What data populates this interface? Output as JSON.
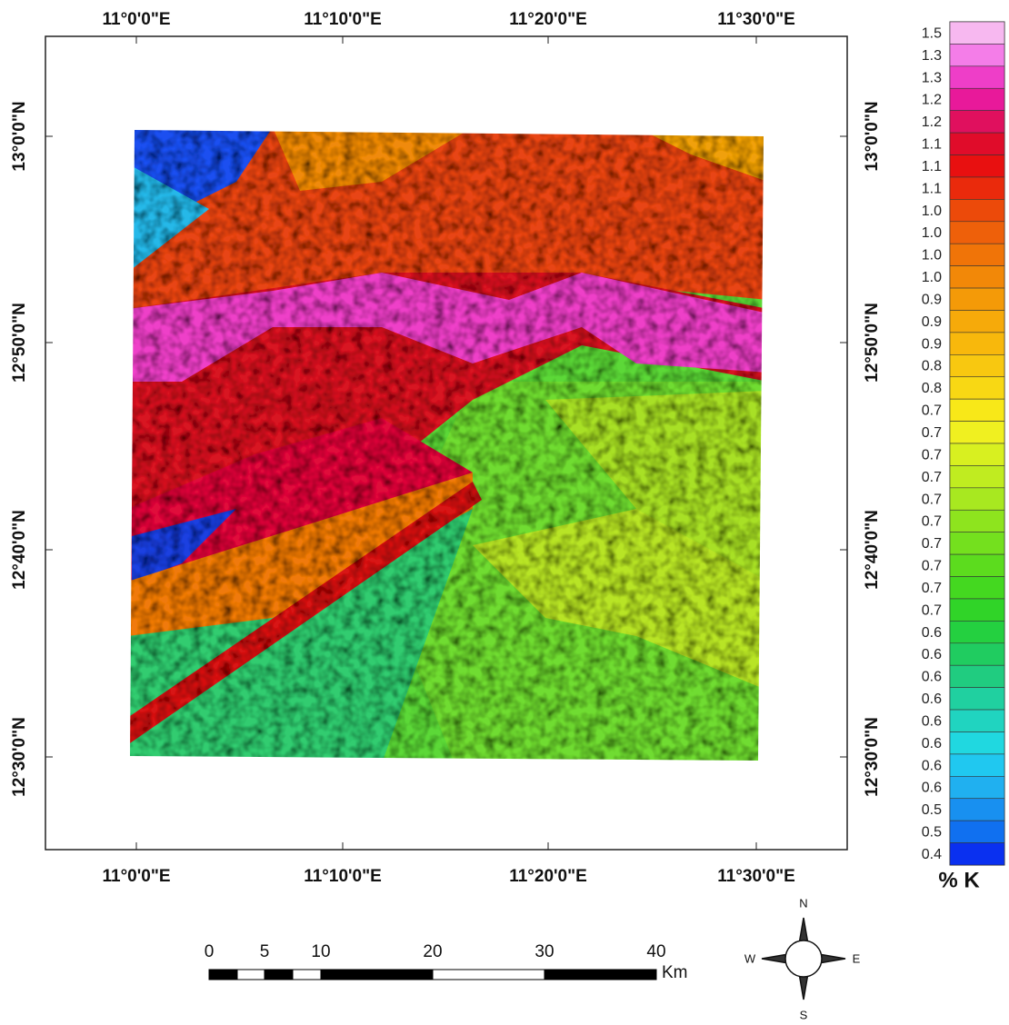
{
  "map": {
    "lon_labels": [
      "11°0'0\"E",
      "11°10'0\"E",
      "11°20'0\"E",
      "11°30'0\"E"
    ],
    "lat_labels": [
      "13°0'0\"N",
      "12°50'0\"N",
      "12°40'0\"N",
      "12°30'0\"N"
    ],
    "legend": {
      "title": "% K",
      "items": [
        {
          "label": "1.5",
          "color": "#f7b8f0"
        },
        {
          "label": "1.3",
          "color": "#f47de8"
        },
        {
          "label": "1.3",
          "color": "#ee3ec8"
        },
        {
          "label": "1.2",
          "color": "#e8199a"
        },
        {
          "label": "1.2",
          "color": "#e0105e"
        },
        {
          "label": "1.1",
          "color": "#e00c2a"
        },
        {
          "label": "1.1",
          "color": "#e81010"
        },
        {
          "label": "1.1",
          "color": "#ea2a0c"
        },
        {
          "label": "1.0",
          "color": "#ec4a0a"
        },
        {
          "label": "1.0",
          "color": "#ee600a"
        },
        {
          "label": "1.0",
          "color": "#f07408"
        },
        {
          "label": "1.0",
          "color": "#f28808"
        },
        {
          "label": "0.9",
          "color": "#f49a08"
        },
        {
          "label": "0.9",
          "color": "#f6aa0a"
        },
        {
          "label": "0.9",
          "color": "#f8b80c"
        },
        {
          "label": "0.8",
          "color": "#f8c810"
        },
        {
          "label": "0.8",
          "color": "#f8d814"
        },
        {
          "label": "0.7",
          "color": "#f8e818"
        },
        {
          "label": "0.7",
          "color": "#f0f020"
        },
        {
          "label": "0.7",
          "color": "#d8f020"
        },
        {
          "label": "0.7",
          "color": "#c0ec20"
        },
        {
          "label": "0.7",
          "color": "#a8e820"
        },
        {
          "label": "0.7",
          "color": "#8ee41e"
        },
        {
          "label": "0.7",
          "color": "#74e01e"
        },
        {
          "label": "0.7",
          "color": "#5cdc1e"
        },
        {
          "label": "0.7",
          "color": "#44d820"
        },
        {
          "label": "0.7",
          "color": "#30d428"
        },
        {
          "label": "0.6",
          "color": "#24d040"
        },
        {
          "label": "0.6",
          "color": "#20cc60"
        },
        {
          "label": "0.6",
          "color": "#20cc80"
        },
        {
          "label": "0.6",
          "color": "#20d0a0"
        },
        {
          "label": "0.6",
          "color": "#20d4c0"
        },
        {
          "label": "0.6",
          "color": "#20d8e0"
        },
        {
          "label": "0.6",
          "color": "#20c8f0"
        },
        {
          "label": "0.6",
          "color": "#20b0f0"
        },
        {
          "label": "0.5",
          "color": "#1890f0"
        },
        {
          "label": "0.5",
          "color": "#1070f0"
        },
        {
          "label": "0.4",
          "color": "#0a30f0"
        }
      ]
    },
    "scale_bar": {
      "labels": [
        "0",
        "5",
        "10",
        "20",
        "30",
        "40"
      ],
      "unit": "Km"
    },
    "compass": {
      "north": "N",
      "south": "S",
      "east": "E",
      "west": "W"
    }
  }
}
